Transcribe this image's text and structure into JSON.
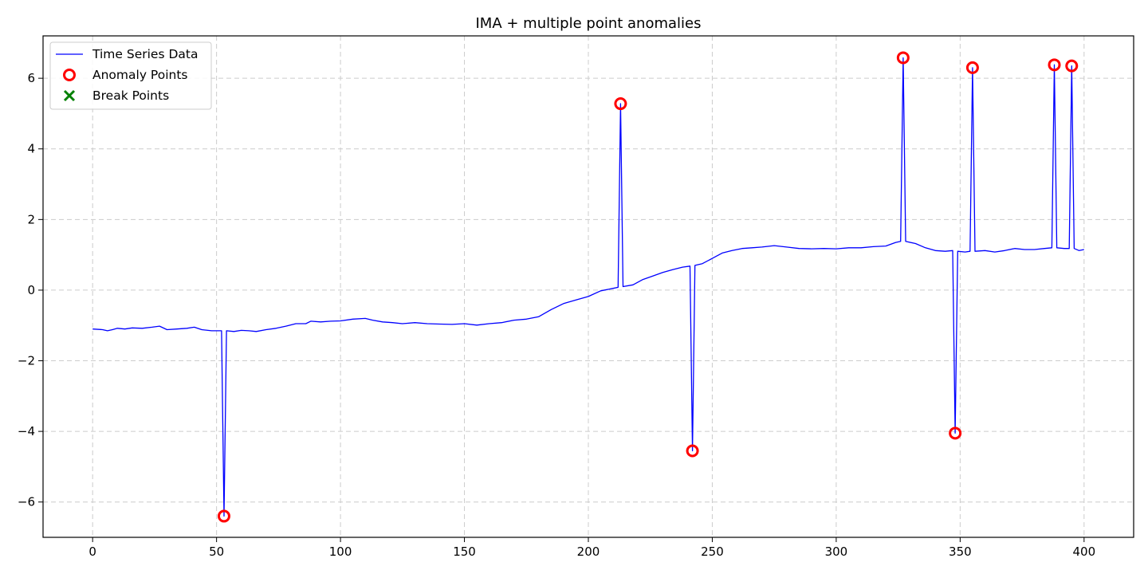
{
  "chart_data": {
    "type": "line",
    "title": "IMA + multiple point anomalies",
    "xlabel": "",
    "ylabel": "",
    "xlim": [
      -20,
      420
    ],
    "ylim": [
      -7.0,
      7.2
    ],
    "xticks": [
      0,
      50,
      100,
      150,
      200,
      250,
      300,
      350,
      400
    ],
    "yticks": [
      -6,
      -4,
      -2,
      0,
      2,
      4,
      6
    ],
    "grid": true,
    "legend_position": "top-left",
    "legend": [
      {
        "label": "Time Series Data",
        "marker": "line",
        "color": "#0000ff"
      },
      {
        "label": "Anomaly Points",
        "marker": "circle",
        "color": "#ff0000"
      },
      {
        "label": "Break Points",
        "marker": "x",
        "color": "#008000"
      }
    ],
    "series": [
      {
        "name": "Time Series Data",
        "color": "#0000ff",
        "points": [
          [
            0,
            -1.1
          ],
          [
            4,
            -1.12
          ],
          [
            6,
            -1.15
          ],
          [
            8,
            -1.12
          ],
          [
            10,
            -1.08
          ],
          [
            13,
            -1.1
          ],
          [
            16,
            -1.07
          ],
          [
            20,
            -1.08
          ],
          [
            24,
            -1.05
          ],
          [
            27,
            -1.02
          ],
          [
            30,
            -1.12
          ],
          [
            34,
            -1.1
          ],
          [
            38,
            -1.08
          ],
          [
            41,
            -1.05
          ],
          [
            44,
            -1.12
          ],
          [
            48,
            -1.15
          ],
          [
            52,
            -1.15
          ],
          [
            53,
            -6.4
          ],
          [
            54,
            -1.15
          ],
          [
            57,
            -1.17
          ],
          [
            60,
            -1.14
          ],
          [
            63,
            -1.15
          ],
          [
            66,
            -1.17
          ],
          [
            70,
            -1.12
          ],
          [
            74,
            -1.08
          ],
          [
            78,
            -1.02
          ],
          [
            82,
            -0.95
          ],
          [
            86,
            -0.95
          ],
          [
            88,
            -0.88
          ],
          [
            92,
            -0.9
          ],
          [
            96,
            -0.88
          ],
          [
            100,
            -0.87
          ],
          [
            105,
            -0.82
          ],
          [
            110,
            -0.8
          ],
          [
            113,
            -0.85
          ],
          [
            117,
            -0.9
          ],
          [
            121,
            -0.92
          ],
          [
            125,
            -0.95
          ],
          [
            130,
            -0.92
          ],
          [
            135,
            -0.95
          ],
          [
            140,
            -0.96
          ],
          [
            145,
            -0.97
          ],
          [
            150,
            -0.95
          ],
          [
            155,
            -0.99
          ],
          [
            160,
            -0.95
          ],
          [
            165,
            -0.92
          ],
          [
            170,
            -0.85
          ],
          [
            175,
            -0.82
          ],
          [
            180,
            -0.75
          ],
          [
            185,
            -0.55
          ],
          [
            190,
            -0.38
          ],
          [
            195,
            -0.28
          ],
          [
            200,
            -0.18
          ],
          [
            205,
            -0.02
          ],
          [
            210,
            0.05
          ],
          [
            212,
            0.08
          ],
          [
            213,
            5.28
          ],
          [
            214,
            0.1
          ],
          [
            218,
            0.15
          ],
          [
            222,
            0.3
          ],
          [
            226,
            0.4
          ],
          [
            230,
            0.5
          ],
          [
            234,
            0.58
          ],
          [
            238,
            0.65
          ],
          [
            241,
            0.68
          ],
          [
            242,
            -4.55
          ],
          [
            243,
            0.7
          ],
          [
            246,
            0.75
          ],
          [
            250,
            0.9
          ],
          [
            254,
            1.05
          ],
          [
            258,
            1.12
          ],
          [
            262,
            1.18
          ],
          [
            266,
            1.2
          ],
          [
            270,
            1.22
          ],
          [
            275,
            1.26
          ],
          [
            280,
            1.22
          ],
          [
            285,
            1.18
          ],
          [
            290,
            1.17
          ],
          [
            295,
            1.18
          ],
          [
            300,
            1.17
          ],
          [
            305,
            1.2
          ],
          [
            310,
            1.2
          ],
          [
            315,
            1.23
          ],
          [
            320,
            1.25
          ],
          [
            324,
            1.35
          ],
          [
            326,
            1.38
          ],
          [
            327,
            6.58
          ],
          [
            328,
            1.38
          ],
          [
            332,
            1.32
          ],
          [
            336,
            1.2
          ],
          [
            340,
            1.12
          ],
          [
            344,
            1.1
          ],
          [
            347,
            1.12
          ],
          [
            348,
            -4.05
          ],
          [
            349,
            1.1
          ],
          [
            352,
            1.08
          ],
          [
            354,
            1.1
          ],
          [
            355,
            6.3
          ],
          [
            356,
            1.1
          ],
          [
            360,
            1.12
          ],
          [
            364,
            1.08
          ],
          [
            368,
            1.12
          ],
          [
            372,
            1.18
          ],
          [
            376,
            1.15
          ],
          [
            380,
            1.15
          ],
          [
            384,
            1.18
          ],
          [
            387,
            1.2
          ],
          [
            388,
            6.38
          ],
          [
            389,
            1.2
          ],
          [
            392,
            1.18
          ],
          [
            394,
            1.18
          ],
          [
            395,
            6.35
          ],
          [
            396,
            1.18
          ],
          [
            398,
            1.12
          ],
          [
            400,
            1.15
          ]
        ]
      }
    ],
    "anomaly_points": [
      [
        53,
        -6.4
      ],
      [
        213,
        5.28
      ],
      [
        242,
        -4.55
      ],
      [
        327,
        6.58
      ],
      [
        348,
        -4.05
      ],
      [
        355,
        6.3
      ],
      [
        388,
        6.38
      ],
      [
        395,
        6.35
      ]
    ],
    "break_points": []
  }
}
